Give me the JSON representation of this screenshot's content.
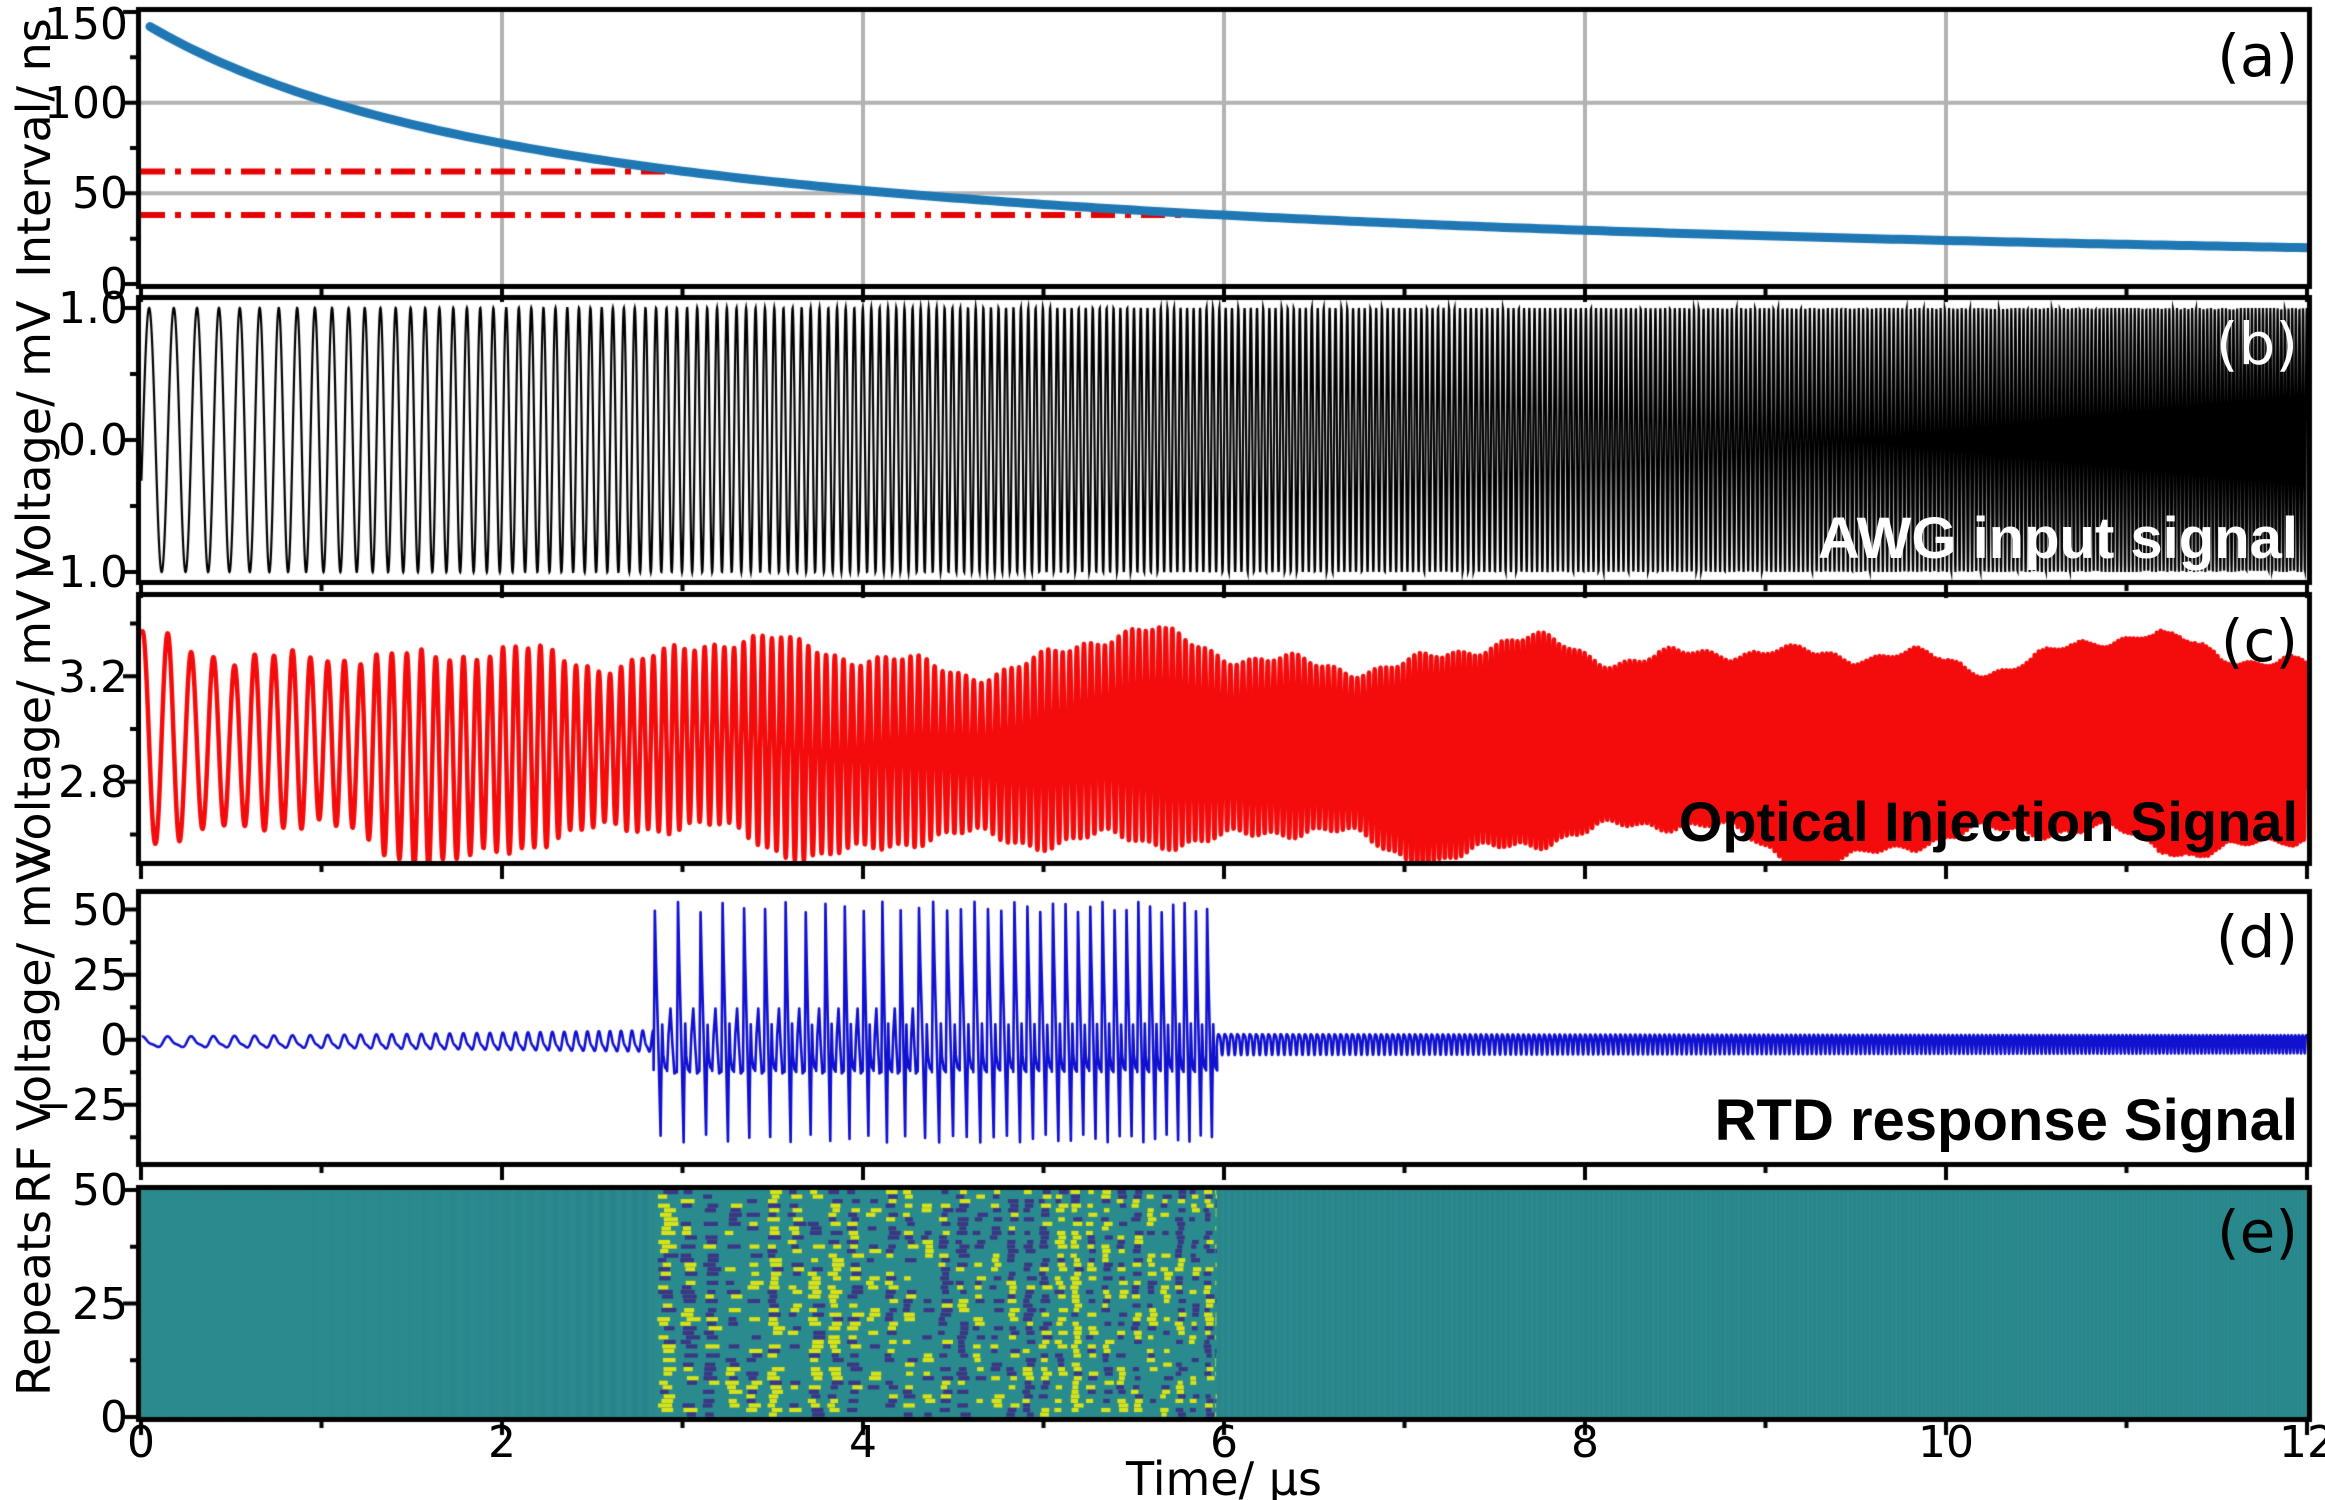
{
  "figure": {
    "background": "#ffffff",
    "border_color": "#000000",
    "grid_color": "#b3b3b3",
    "xlabel": "Time/ µs",
    "xlim": [
      0,
      12
    ],
    "xticks": [
      0,
      2,
      4,
      6,
      8,
      10,
      12
    ],
    "xticklabels": [
      "0",
      "2",
      "4",
      "6",
      "8",
      "10",
      "12"
    ],
    "x_minor_ticks": [
      1,
      3,
      5,
      7,
      9,
      11
    ]
  },
  "chart_data": [
    {
      "panel": "a",
      "type": "line",
      "panel_label": "(a)",
      "ylabel": "Interval/ ns",
      "ylim": [
        0,
        150
      ],
      "yticks": [
        150,
        100,
        50,
        0
      ],
      "yticklabels": [
        "150",
        "100",
        "50",
        "0"
      ],
      "y_minor_ticks": [
        125,
        75,
        25
      ],
      "grid": true,
      "line_color": "#1f77b4",
      "curve_points": [
        [
          0.05,
          144.5
        ],
        [
          0.5,
          119.7
        ],
        [
          1,
          101.6
        ],
        [
          1.5,
          88.1
        ],
        [
          2,
          77.5
        ],
        [
          2.5,
          69.1
        ],
        [
          3,
          62.2
        ],
        [
          3.5,
          56.5
        ],
        [
          4,
          51.6
        ],
        [
          4.5,
          47.5
        ],
        [
          5,
          43.9
        ],
        [
          5.5,
          40.8
        ],
        [
          6,
          38.0
        ],
        [
          6.5,
          35.6
        ],
        [
          7,
          33.4
        ],
        [
          7.5,
          31.4
        ],
        [
          8,
          29.6
        ],
        [
          8.5,
          28.0
        ],
        [
          9,
          26.6
        ],
        [
          9.5,
          25.2
        ],
        [
          10,
          24.0
        ],
        [
          10.5,
          22.9
        ],
        [
          11,
          21.9
        ],
        [
          11.5,
          20.9
        ],
        [
          12,
          20.0
        ]
      ],
      "inverse_poly": [
        0.0069,
        0.002881,
        5.924e-05
      ],
      "ref_lines": [
        {
          "interval_ns": 62,
          "t_start": 0,
          "t_end": 3.0,
          "color": "#e60000",
          "style": "dashdot"
        },
        {
          "interval_ns": 38,
          "t_start": 0,
          "t_end": 6.0,
          "color": "#e60000",
          "style": "dashdot"
        }
      ]
    },
    {
      "panel": "b",
      "type": "line",
      "panel_label": "(b)",
      "panel_label_color": "#ffffff",
      "ylabel": "Voltage/ mV",
      "ylim": [
        -1.06,
        1.06
      ],
      "yticks": [
        1.0,
        0.0,
        -1.0
      ],
      "yticklabels": [
        "1.0",
        "0.0",
        "−1.0"
      ],
      "y_minor_ticks": [
        0.5,
        -0.5
      ],
      "label": "AWG input signal",
      "label_color": "#ffffff",
      "line_color": "#000000",
      "signal": {
        "kind": "linear_chirp",
        "f_start_MHz": 6.9,
        "f_end_MHz": 50,
        "duration_us": 12,
        "amplitude_mV": 1.0,
        "offset_mV": 0.0
      }
    },
    {
      "panel": "c",
      "type": "line",
      "panel_label": "(c)",
      "panel_label_color": "#000000",
      "ylabel": "Voltage/ mV",
      "ylim": [
        2.5,
        3.5
      ],
      "yticks": [
        3.2,
        2.8
      ],
      "yticklabels": [
        "3.2",
        "2.8"
      ],
      "y_minor_ticks": [
        3.4,
        3.0,
        2.6
      ],
      "label": "Optical Injection Signal",
      "label_color": "#000000",
      "line_color": "#f40b0b",
      "signal": {
        "kind": "linear_chirp_modulated",
        "f_start_MHz": 6.9,
        "f_end_MHz": 50,
        "duration_us": 12,
        "center_mV": 2.93,
        "envelope_mV_min": 0.27,
        "envelope_mV_max": 0.42
      }
    },
    {
      "panel": "d",
      "type": "line",
      "panel_label": "(d)",
      "panel_label_color": "#000000",
      "ylabel": "RF Voltage/ mV",
      "ylim": [
        -47,
        56
      ],
      "yticks": [
        50,
        25,
        0,
        -25
      ],
      "yticklabels": [
        "50",
        "25",
        "0",
        "−25"
      ],
      "y_minor_ticks": [
        37.5,
        12.5,
        -12.5,
        -37.5
      ],
      "label": "RTD response Signal",
      "label_color": "#000000",
      "line_color": "#1111d0",
      "signal": {
        "kind": "rtd_response",
        "quiet_offset_mV": -1,
        "quiet_amplitude_start_mV": 2.2,
        "quiet_amplitude_end_mV": 4.5,
        "burst_start_us": 2.84,
        "burst_end_us": 5.96,
        "period2_end_us": 4.25,
        "burst_peak_mV": 51,
        "burst_trough_mV": -38
      }
    },
    {
      "panel": "e",
      "type": "heatmap",
      "panel_label": "(e)",
      "panel_label_color": "#000000",
      "ylabel": "Repeats",
      "ylim": [
        0,
        50
      ],
      "yticks": [
        50,
        25,
        0
      ],
      "yticklabels": [
        "50",
        "25",
        "0"
      ],
      "y_minor_ticks": [
        37.5,
        12.5
      ],
      "rows": 50,
      "chaotic_region_us": [
        2.84,
        5.96
      ],
      "colors": {
        "base": "#2a8b8e",
        "stripe_dark": "#226f84",
        "yellow": "#d8e219",
        "indigo": "#3b3784"
      }
    }
  ]
}
